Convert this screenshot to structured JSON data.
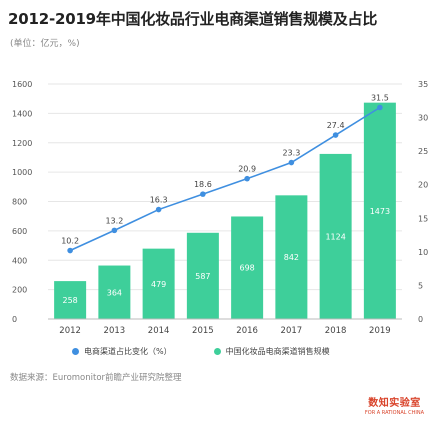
{
  "title": "2012-2019年中国化妆品行业电商渠道销售规模及占比",
  "unit_note": "(单位：亿元，%)",
  "source_note": "数据来源：Euromonitor前瞻产业研究院整理",
  "brand": {
    "name": "数知实验室",
    "tagline": "FOR A RATIONAL CHINA"
  },
  "colors": {
    "bar": "#3ecf9a",
    "line": "#3f8fe0",
    "grid": "#e6e6e6"
  },
  "chart_data": {
    "type": "bar",
    "categories": [
      "2012",
      "2013",
      "2014",
      "2015",
      "2016",
      "2017",
      "2018",
      "2019"
    ],
    "series": [
      {
        "name": "中国化妆品电商渠道销售规模",
        "type": "bar",
        "axis": "left",
        "values": [
          258,
          364,
          479,
          587,
          698,
          842,
          1124,
          1473
        ]
      },
      {
        "name": "电商渠道占比变化（%）",
        "type": "line",
        "axis": "right",
        "values": [
          10.2,
          13.2,
          16.3,
          18.6,
          20.9,
          23.3,
          27.4,
          31.5
        ]
      }
    ],
    "y_left": {
      "min": 0,
      "max": 1600,
      "ticks": [
        0,
        200,
        400,
        600,
        800,
        1000,
        1200,
        1400,
        1600
      ]
    },
    "y_right": {
      "min": 0,
      "max": 35,
      "ticks": [
        0,
        5,
        10,
        15,
        20,
        25,
        30,
        35
      ]
    },
    "grid": true,
    "legend": "bottom"
  }
}
